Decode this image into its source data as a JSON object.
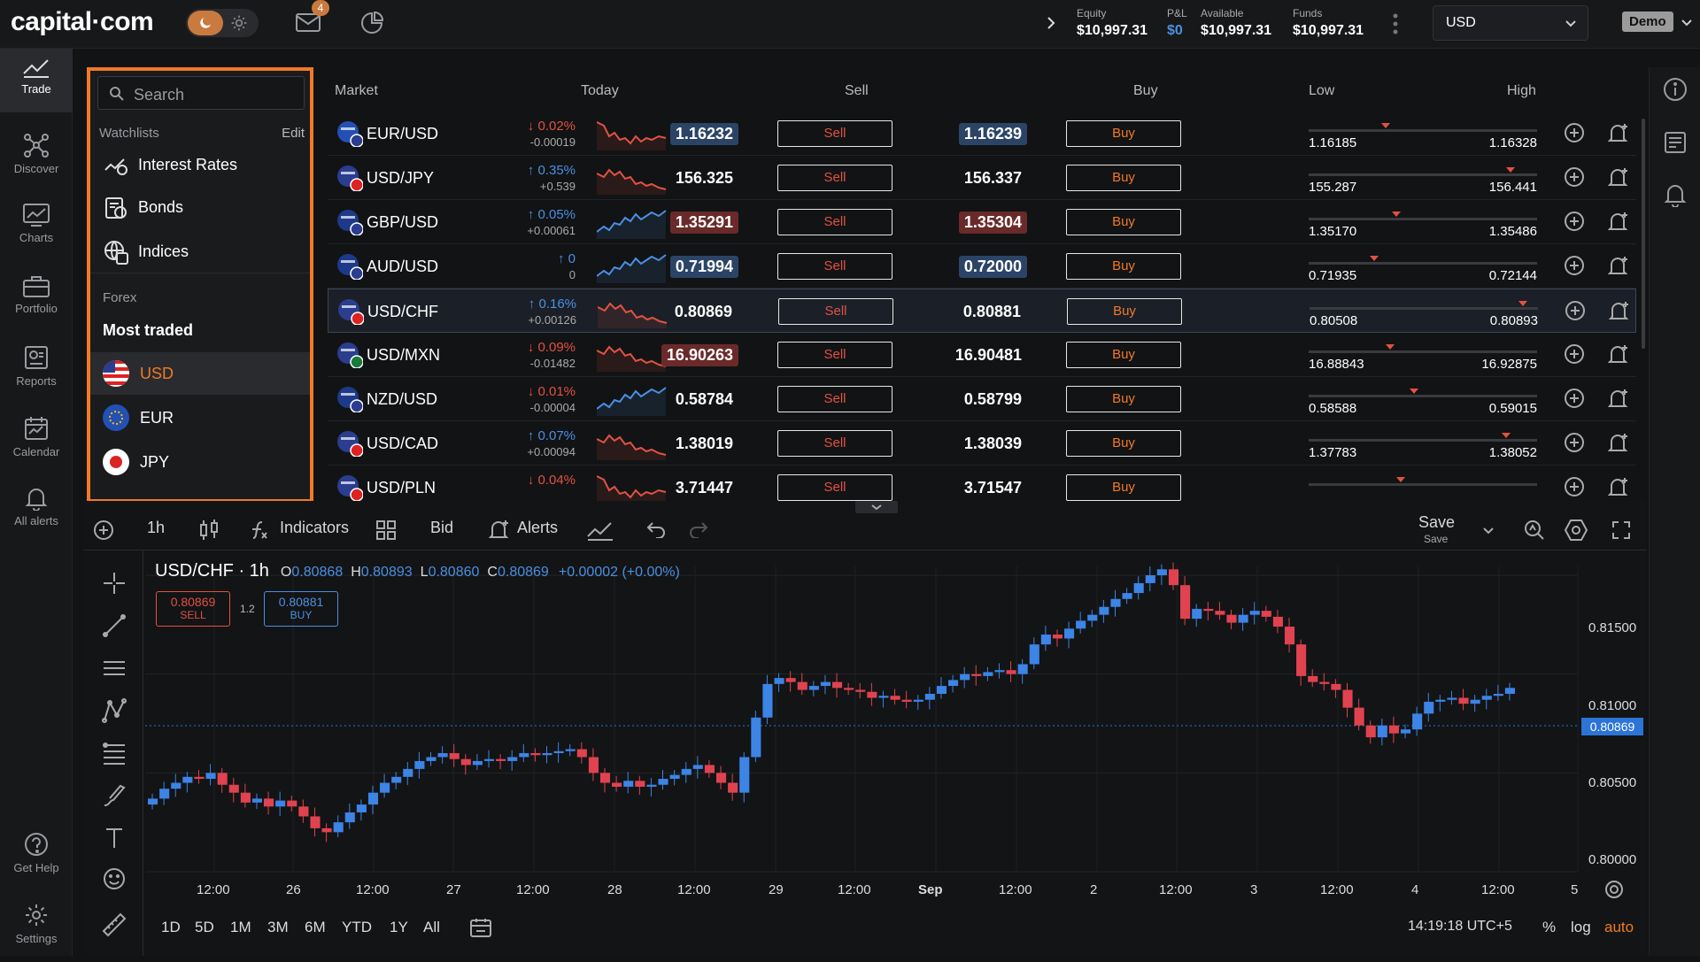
{
  "app": {
    "logo": "capital·com",
    "messages_badge": "4"
  },
  "account": {
    "equity_label": "Equity",
    "equity": "$10,997.31",
    "pnl_label": "P&L",
    "pnl": "$0",
    "available_label": "Available",
    "available": "$10,997.31",
    "funds_label": "Funds",
    "funds": "$10,997.31",
    "currency": "USD",
    "mode": "Demo"
  },
  "nav": [
    {
      "label": "Trade",
      "icon": "trade-icon"
    },
    {
      "label": "Discover",
      "icon": "discover-icon"
    },
    {
      "label": "Charts",
      "icon": "charts-icon"
    },
    {
      "label": "Portfolio",
      "icon": "portfolio-icon"
    },
    {
      "label": "Reports",
      "icon": "reports-icon"
    },
    {
      "label": "Calendar",
      "icon": "calendar-icon"
    },
    {
      "label": "All alerts",
      "icon": "bell-icon"
    },
    {
      "label": "Get Help",
      "icon": "help-icon"
    },
    {
      "label": "Settings",
      "icon": "gear-icon"
    }
  ],
  "watchlist": {
    "search_placeholder": "Search",
    "header": "Watchlists",
    "edit": "Edit",
    "items": [
      "Interest Rates",
      "Bonds",
      "Indices"
    ],
    "forex_label": "Forex",
    "most_traded": "Most traded",
    "currencies": [
      "USD",
      "EUR",
      "JPY"
    ]
  },
  "market": {
    "headers": {
      "market": "Market",
      "today": "Today",
      "sell": "Sell",
      "buy": "Buy",
      "low": "Low",
      "high": "High"
    },
    "sell_label": "Sell",
    "buy_label": "Buy",
    "rows": [
      {
        "pair": "EUR/USD",
        "chg": "↓ 0.02%",
        "chg_abs": "-0.00019",
        "dir": "down",
        "sell": "1.16232",
        "buy": "1.16239",
        "hl": "bup",
        "low": "1.16185",
        "high": "1.16328",
        "pos": 0.33
      },
      {
        "pair": "USD/JPY",
        "chg": "↑ 0.35%",
        "chg_abs": "+0.539",
        "dir": "up",
        "sell": "156.325",
        "buy": "156.337",
        "hl": "bnone",
        "low": "155.287",
        "high": "156.441",
        "pos": 0.9
      },
      {
        "pair": "GBP/USD",
        "chg": "↑ 0.05%",
        "chg_abs": "+0.00061",
        "dir": "up",
        "sell": "1.35291",
        "buy": "1.35304",
        "hl": "bdown",
        "low": "1.35170",
        "high": "1.35486",
        "pos": 0.38
      },
      {
        "pair": "AUD/USD",
        "chg": "↑ 0",
        "chg_abs": "0",
        "dir": "up",
        "sell": "0.71994",
        "buy": "0.72000",
        "hl": "bup",
        "low": "0.71935",
        "high": "0.72144",
        "pos": 0.28
      },
      {
        "pair": "USD/CHF",
        "chg": "↑ 0.16%",
        "chg_abs": "+0.00126",
        "dir": "up",
        "sell": "0.80869",
        "buy": "0.80881",
        "hl": "bnone",
        "low": "0.80508",
        "high": "0.80893",
        "pos": 0.95
      },
      {
        "pair": "USD/MXN",
        "chg": "↓ 0.09%",
        "chg_abs": "-0.01482",
        "dir": "down",
        "sell": "16.90263",
        "buy": "16.90481",
        "hl": "bdown1",
        "low": "16.88843",
        "high": "16.92875",
        "pos": 0.35
      },
      {
        "pair": "NZD/USD",
        "chg": "↓ 0.01%",
        "chg_abs": "-0.00004",
        "dir": "down",
        "sell": "0.58784",
        "buy": "0.58799",
        "hl": "bnone",
        "low": "0.58588",
        "high": "0.59015",
        "pos": 0.46
      },
      {
        "pair": "USD/CAD",
        "chg": "↑ 0.07%",
        "chg_abs": "+0.00094",
        "dir": "up",
        "sell": "1.38019",
        "buy": "1.38039",
        "hl": "bnone",
        "low": "1.37783",
        "high": "1.38052",
        "pos": 0.88
      },
      {
        "pair": "USD/PLN",
        "chg": "↓ 0.04%",
        "chg_abs": "",
        "dir": "down",
        "sell": "3.71447",
        "buy": "3.71547",
        "hl": "bnone",
        "low": "",
        "high": "",
        "pos": 0.4
      }
    ]
  },
  "chart_toolbar": {
    "interval": "1h",
    "indicators": "Indicators",
    "price_type": "Bid",
    "alerts": "Alerts",
    "save": "Save",
    "save_sub": "Save"
  },
  "chart_header": {
    "title": "USD/CHF · 1h",
    "o_label": "O",
    "o": "0.80868",
    "h_label": "H",
    "h": "0.80893",
    "l_label": "L",
    "l": "0.80860",
    "c_label": "C",
    "c": "0.80869",
    "change": "+0.00002 (+0.00%)",
    "sell_price": "0.80869",
    "sell_label": "SELL",
    "buy_price": "0.80881",
    "buy_label": "BUY",
    "spread": "1.2"
  },
  "chart_data": {
    "type": "candlestick",
    "symbol": "USD/CHF",
    "interval": "1h",
    "y_ticks": [
      "0.81500",
      "0.81000",
      "0.80500",
      "0.80000"
    ],
    "ylim": [
      0.8,
      0.815
    ],
    "current_price": "0.80869",
    "x_ticks": [
      "12:00",
      "26",
      "12:00",
      "27",
      "12:00",
      "28",
      "12:00",
      "29",
      "12:00",
      "Sep",
      "12:00",
      "2",
      "12:00",
      "3",
      "12:00",
      "4",
      "12:00",
      "5"
    ],
    "close_path": [
      0.8037,
      0.8042,
      0.8045,
      0.8048,
      0.8047,
      0.805,
      0.8044,
      0.804,
      0.8035,
      0.8037,
      0.8033,
      0.8036,
      0.8033,
      0.8028,
      0.8022,
      0.802,
      0.8025,
      0.803,
      0.8034,
      0.804,
      0.8045,
      0.8048,
      0.8052,
      0.8056,
      0.8058,
      0.806,
      0.8057,
      0.8054,
      0.8056,
      0.8057,
      0.8056,
      0.8058,
      0.806,
      0.8059,
      0.806,
      0.8061,
      0.8062,
      0.8058,
      0.805,
      0.8045,
      0.8043,
      0.8046,
      0.8043,
      0.8044,
      0.8047,
      0.8049,
      0.8052,
      0.8054,
      0.805,
      0.8045,
      0.804,
      0.8058,
      0.8078,
      0.8095,
      0.8098,
      0.8096,
      0.8092,
      0.8094,
      0.8096,
      0.8093,
      0.8092,
      0.8091,
      0.8088,
      0.8089,
      0.8087,
      0.8086,
      0.8087,
      0.809,
      0.8094,
      0.8097,
      0.81,
      0.8099,
      0.8101,
      0.8102,
      0.81,
      0.8105,
      0.8115,
      0.812,
      0.8118,
      0.8123,
      0.8127,
      0.813,
      0.8134,
      0.8138,
      0.8141,
      0.8146,
      0.815,
      0.8153,
      0.8145,
      0.8128,
      0.8133,
      0.8132,
      0.813,
      0.8126,
      0.813,
      0.8132,
      0.8129,
      0.8124,
      0.8115,
      0.8099,
      0.8096,
      0.8095,
      0.8092,
      0.8083,
      0.8074,
      0.8068,
      0.8074,
      0.807,
      0.8072,
      0.808,
      0.8086,
      0.8087,
      0.8088,
      0.8085,
      0.8087,
      0.8089,
      0.809,
      0.8093
    ],
    "range_buttons": [
      "1D",
      "5D",
      "1M",
      "3M",
      "6M",
      "YTD",
      "1Y",
      "All"
    ],
    "timestamp": "14:19:18 UTC+5",
    "scale_options": [
      "%",
      "log",
      "auto"
    ]
  }
}
